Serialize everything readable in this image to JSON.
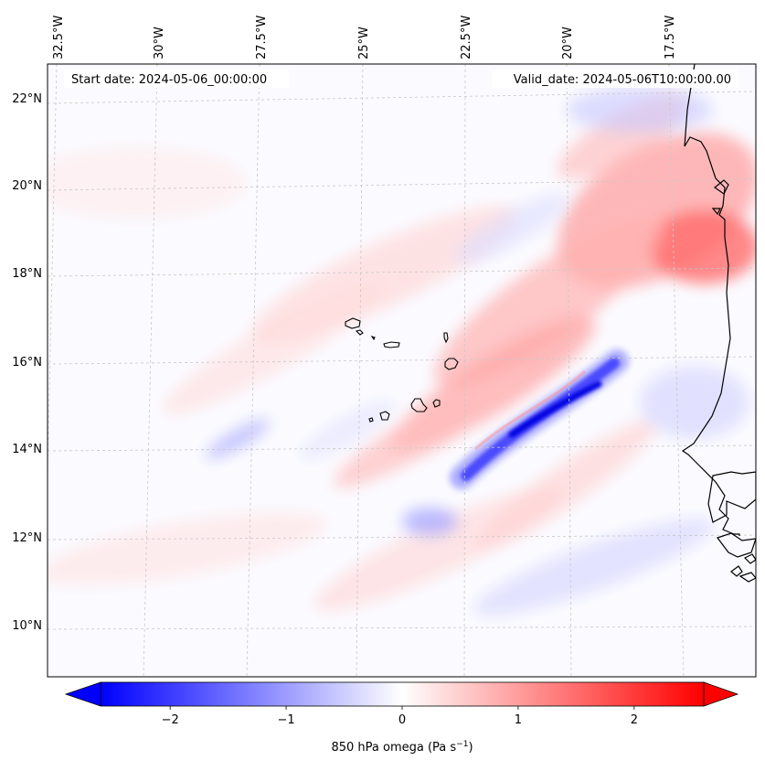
{
  "map": {
    "start_label": "Start date: 2024-05-06_00:00:00",
    "valid_label": "Valid_date: 2024-05-06T10:00:00.00",
    "lon_labels": [
      "32.5°W",
      "30°W",
      "27.5°W",
      "25°W",
      "22.5°W",
      "20°W",
      "17.5°W"
    ],
    "lat_labels": [
      "22°N",
      "20°N",
      "18°N",
      "16°N",
      "14°N",
      "12°N",
      "10°N"
    ],
    "colors": {
      "negative": "#0000ff",
      "neutral": "#ffffff",
      "positive": "#ff0000",
      "coast": "#000000",
      "grid": "#c8c8c8"
    }
  },
  "colorbar": {
    "ticks": [
      "−2",
      "−1",
      "0",
      "1",
      "2"
    ],
    "tick_values": [
      -2,
      -1,
      0,
      1,
      2
    ],
    "range": [
      -2.6,
      2.6
    ],
    "label_main": "850 hPa omega (Pa s",
    "label_sup": "−1",
    "label_end": ")"
  }
}
